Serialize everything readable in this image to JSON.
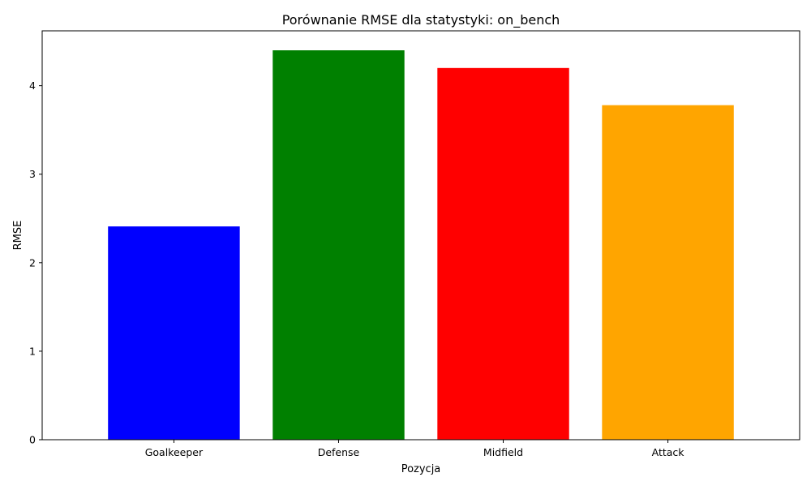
{
  "chart_data": {
    "type": "bar",
    "title": "Porównanie RMSE dla statystyki: on_bench",
    "xlabel": "Pozycja",
    "ylabel": "RMSE",
    "categories": [
      "Goalkeeper",
      "Defense",
      "Midfield",
      "Attack"
    ],
    "values": [
      2.41,
      4.4,
      4.2,
      3.78
    ],
    "colors": [
      "#0000ff",
      "#008000",
      "#ff0000",
      "#ffa500"
    ],
    "ylim": [
      0,
      4.62
    ],
    "yticks": [
      0,
      1,
      2,
      3,
      4
    ],
    "grid": false,
    "legend": "none"
  }
}
